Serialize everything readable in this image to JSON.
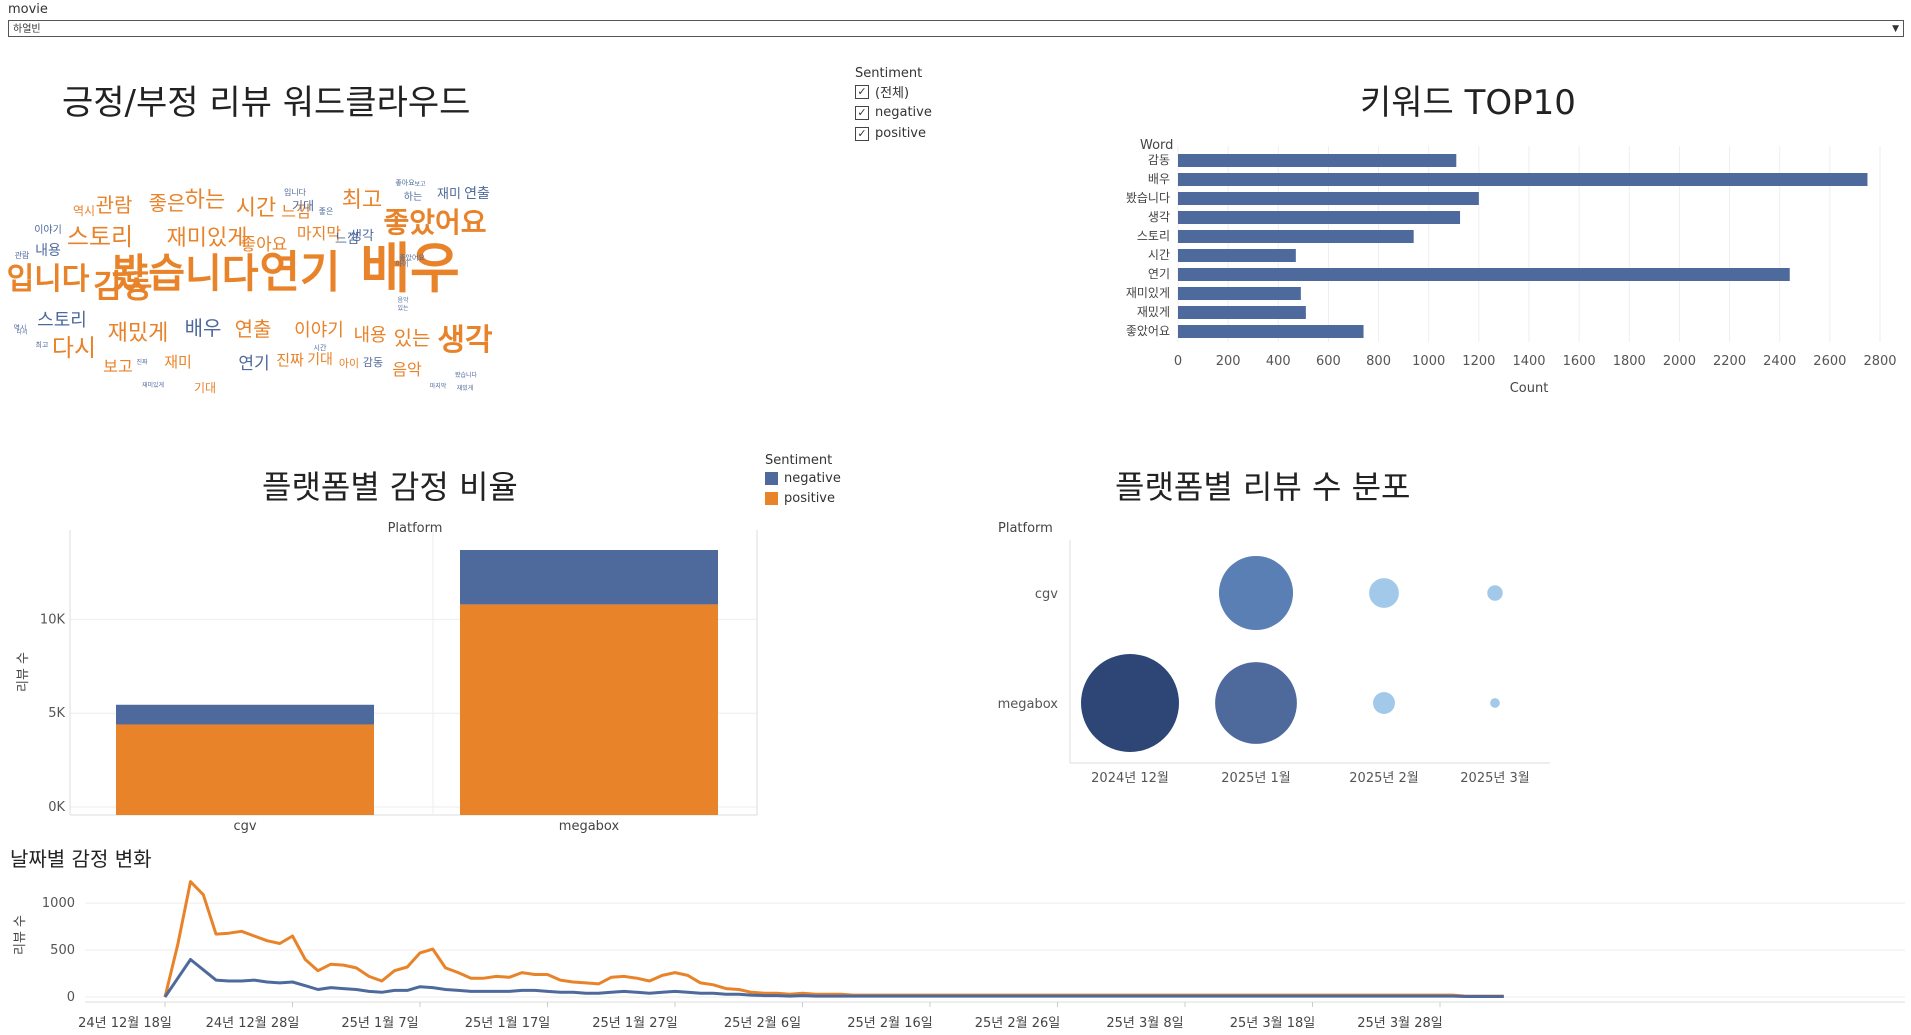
{
  "filter": {
    "label": "movie",
    "selected": "하얼빈"
  },
  "colors": {
    "negative": "#4e6a9c",
    "positive": "#e8832a",
    "dark_navy": "#2d4676",
    "mid_blue": "#5a7fb5",
    "light_blue": "#a3c9ea"
  },
  "wordcloud": {
    "title": "긍정/부정 리뷰 워드클라우드",
    "words": [
      {
        "text": "배우",
        "size": 54,
        "color": "orange"
      },
      {
        "text": "연기",
        "size": 44,
        "color": "orange"
      },
      {
        "text": "봤습니다",
        "size": 40,
        "color": "orange"
      },
      {
        "text": "감동",
        "size": 32,
        "color": "orange"
      },
      {
        "text": "입니다",
        "size": 30,
        "color": "orange"
      },
      {
        "text": "좋았어요",
        "size": 28,
        "color": "orange"
      },
      {
        "text": "생각",
        "size": 30,
        "color": "orange"
      },
      {
        "text": "스토리",
        "size": 24,
        "color": "orange"
      },
      {
        "text": "재미있게",
        "size": 22,
        "color": "orange"
      },
      {
        "text": "다시",
        "size": 24,
        "color": "orange"
      },
      {
        "text": "재밌게",
        "size": 22,
        "color": "orange"
      },
      {
        "text": "시간",
        "size": 22,
        "color": "orange"
      },
      {
        "text": "최고",
        "size": 22,
        "color": "orange"
      },
      {
        "text": "하는",
        "size": 22,
        "color": "orange"
      },
      {
        "text": "좋은",
        "size": 20,
        "color": "orange"
      },
      {
        "text": "관람",
        "size": 20,
        "color": "orange"
      },
      {
        "text": "배우",
        "size": 20,
        "color": "blue"
      },
      {
        "text": "연출",
        "size": 20,
        "color": "orange"
      },
      {
        "text": "이야기",
        "size": 18,
        "color": "orange"
      },
      {
        "text": "내용",
        "size": 18,
        "color": "orange"
      },
      {
        "text": "있는",
        "size": 20,
        "color": "orange"
      },
      {
        "text": "스토리",
        "size": 18,
        "color": "blue"
      },
      {
        "text": "연기",
        "size": 17,
        "color": "blue"
      },
      {
        "text": "좋아요",
        "size": 17,
        "color": "orange"
      },
      {
        "text": "마지막",
        "size": 16,
        "color": "orange"
      },
      {
        "text": "느낌",
        "size": 16,
        "color": "orange"
      },
      {
        "text": "재미",
        "size": 15,
        "color": "orange"
      },
      {
        "text": "보고",
        "size": 16,
        "color": "orange"
      },
      {
        "text": "음악",
        "size": 16,
        "color": "orange"
      },
      {
        "text": "진짜",
        "size": 15,
        "color": "orange"
      },
      {
        "text": "기대",
        "size": 14,
        "color": "orange"
      },
      {
        "text": "기대",
        "size": 12,
        "color": "orange"
      },
      {
        "text": "역시",
        "size": 12,
        "color": "orange"
      },
      {
        "text": "아이",
        "size": 11,
        "color": "orange"
      },
      {
        "text": "내용",
        "size": 14,
        "color": "blue"
      },
      {
        "text": "생각",
        "size": 13,
        "color": "blue"
      },
      {
        "text": "재미",
        "size": 13,
        "color": "blue"
      },
      {
        "text": "연출",
        "size": 14,
        "color": "blue"
      },
      {
        "text": "느낌",
        "size": 13,
        "color": "blue"
      },
      {
        "text": "기대",
        "size": 12,
        "color": "blue"
      },
      {
        "text": "감동",
        "size": 11,
        "color": "blue"
      },
      {
        "text": "이야기",
        "size": 10,
        "color": "blue"
      },
      {
        "text": "하는",
        "size": 10,
        "color": "blue"
      },
      {
        "text": "입니다",
        "size": 8,
        "color": "blue"
      },
      {
        "text": "좋은",
        "size": 8,
        "color": "blue"
      },
      {
        "text": "좋아요",
        "size": 7,
        "color": "blue"
      },
      {
        "text": "아이",
        "size": 7,
        "color": "blue"
      },
      {
        "text": "시간",
        "size": 7,
        "color": "blue"
      },
      {
        "text": "음악",
        "size": 6,
        "color": "blue"
      },
      {
        "text": "역시",
        "size": 7,
        "color": "blue"
      },
      {
        "text": "있는",
        "size": 6,
        "color": "blue"
      },
      {
        "text": "보고",
        "size": 6,
        "color": "blue"
      },
      {
        "text": "관람",
        "size": 8,
        "color": "blue"
      },
      {
        "text": "다시",
        "size": 6,
        "color": "blue"
      },
      {
        "text": "최고",
        "size": 7,
        "color": "blue"
      },
      {
        "text": "진짜",
        "size": 6,
        "color": "blue"
      },
      {
        "text": "재미있게",
        "size": 6,
        "color": "blue"
      },
      {
        "text": "좋았어요",
        "size": 7,
        "color": "blue"
      },
      {
        "text": "마지막",
        "size": 6,
        "color": "blue"
      },
      {
        "text": "봤습니다",
        "size": 6,
        "color": "blue"
      },
      {
        "text": "재밌게",
        "size": 6,
        "color": "blue"
      }
    ]
  },
  "sentiment_filter": {
    "title": "Sentiment",
    "items": [
      {
        "label": "(전체)",
        "checked": true
      },
      {
        "label": "negative",
        "checked": true
      },
      {
        "label": "positive",
        "checked": true
      }
    ]
  },
  "sentiment_legend": {
    "title": "Sentiment",
    "items": [
      {
        "label": "negative",
        "color": "#4e6a9c"
      },
      {
        "label": "positive",
        "color": "#e8832a"
      }
    ]
  },
  "chart_data": [
    {
      "id": "top10",
      "type": "bar",
      "orientation": "horizontal",
      "title": "키워드 TOP10",
      "ylabel": "Word",
      "xlabel": "Count",
      "categories": [
        "감동",
        "배우",
        "봤습니다",
        "생각",
        "스토리",
        "시간",
        "연기",
        "재미있게",
        "재밌게",
        "좋았어요"
      ],
      "values": [
        1110,
        2750,
        1200,
        1125,
        940,
        470,
        2440,
        490,
        510,
        740
      ],
      "xlim": [
        0,
        2800
      ],
      "xticks": [
        0,
        200,
        400,
        600,
        800,
        1000,
        1200,
        1400,
        1600,
        1800,
        2000,
        2200,
        2400,
        2600,
        2800
      ],
      "color": "#4e6a9c"
    },
    {
      "id": "platform_ratio",
      "type": "bar",
      "stacked": true,
      "title": "플랫폼별 감정 비율",
      "header": "Platform",
      "ylabel": "리뷰 수",
      "categories": [
        "cgv",
        "megabox"
      ],
      "series": [
        {
          "name": "positive",
          "values": [
            4400,
            10800
          ]
        },
        {
          "name": "negative",
          "values": [
            1050,
            2900
          ]
        }
      ],
      "ylim": [
        0,
        13700
      ],
      "yticks": [
        {
          "v": 0,
          "label": "0K"
        },
        {
          "v": 5000,
          "label": "5K"
        },
        {
          "v": 10000,
          "label": "10K"
        }
      ]
    },
    {
      "id": "platform_dist",
      "type": "scatter",
      "title": "플랫폼별 리뷰 수 분포",
      "header": "Platform",
      "rows": [
        "cgv",
        "megabox"
      ],
      "columns": [
        "2024년 12월",
        "2025년 1월",
        "2025년 2월",
        "2025년 3월"
      ],
      "points": [
        {
          "row": "cgv",
          "col": "2025년 1월",
          "value": 3200
        },
        {
          "row": "cgv",
          "col": "2025년 2월",
          "value": 520
        },
        {
          "row": "cgv",
          "col": "2025년 3월",
          "value": 140
        },
        {
          "row": "megabox",
          "col": "2024년 12월",
          "value": 5600
        },
        {
          "row": "megabox",
          "col": "2025년 1월",
          "value": 3900
        },
        {
          "row": "megabox",
          "col": "2025년 2월",
          "value": 280
        },
        {
          "row": "megabox",
          "col": "2025년 3월",
          "value": 55
        }
      ]
    },
    {
      "id": "daily",
      "type": "line",
      "title": "날짜별 감정 변화",
      "ylabel": "리뷰 수",
      "ylim": [
        0,
        1300
      ],
      "yticks": [
        0,
        500,
        1000
      ],
      "xtick_labels": [
        "24년 12월 18일",
        "24년 12월 28일",
        "25년 1월 7일",
        "25년 1월 17일",
        "25년 1월 27일",
        "25년 2월 6일",
        "25년 2월 16일",
        "25년 2월 26일",
        "25년 3월 8일",
        "25년 3월 18일",
        "25년 3월 28일"
      ],
      "x_start": "2024-12-18",
      "series": [
        {
          "name": "positive",
          "values": [
            0,
            560,
            1230,
            1090,
            670,
            680,
            700,
            650,
            600,
            570,
            650,
            400,
            280,
            350,
            340,
            310,
            220,
            170,
            280,
            320,
            470,
            510,
            310,
            260,
            200,
            200,
            220,
            210,
            260,
            240,
            240,
            180,
            160,
            150,
            140,
            210,
            220,
            200,
            170,
            230,
            260,
            230,
            150,
            130,
            90,
            80,
            50,
            40,
            40,
            30,
            40,
            30,
            30,
            30,
            20,
            20,
            20,
            20,
            20,
            20,
            20,
            20,
            20,
            20,
            20,
            20,
            20,
            20,
            20,
            20,
            20,
            20,
            20,
            20,
            20,
            20,
            20,
            20,
            20,
            20,
            20,
            20,
            20,
            20,
            20,
            20,
            20,
            20,
            20,
            20,
            20,
            20,
            20,
            20,
            20,
            20,
            20,
            20,
            20,
            20,
            20,
            20,
            10,
            10,
            10,
            10
          ]
        },
        {
          "name": "negative",
          "values": [
            0,
            200,
            400,
            290,
            180,
            170,
            170,
            180,
            160,
            150,
            160,
            120,
            80,
            100,
            90,
            80,
            60,
            50,
            70,
            70,
            110,
            100,
            80,
            70,
            60,
            60,
            60,
            60,
            70,
            70,
            60,
            50,
            50,
            40,
            40,
            50,
            60,
            50,
            40,
            50,
            60,
            50,
            40,
            40,
            30,
            30,
            20,
            15,
            15,
            10,
            15,
            10,
            10,
            10,
            10,
            10,
            10,
            10,
            10,
            10,
            10,
            10,
            10,
            10,
            10,
            10,
            10,
            10,
            10,
            10,
            10,
            10,
            10,
            10,
            10,
            10,
            10,
            10,
            10,
            10,
            10,
            10,
            10,
            10,
            10,
            10,
            10,
            10,
            10,
            10,
            10,
            10,
            10,
            10,
            10,
            10,
            10,
            10,
            10,
            10,
            10,
            10,
            5,
            5,
            5,
            5
          ]
        }
      ]
    }
  ]
}
